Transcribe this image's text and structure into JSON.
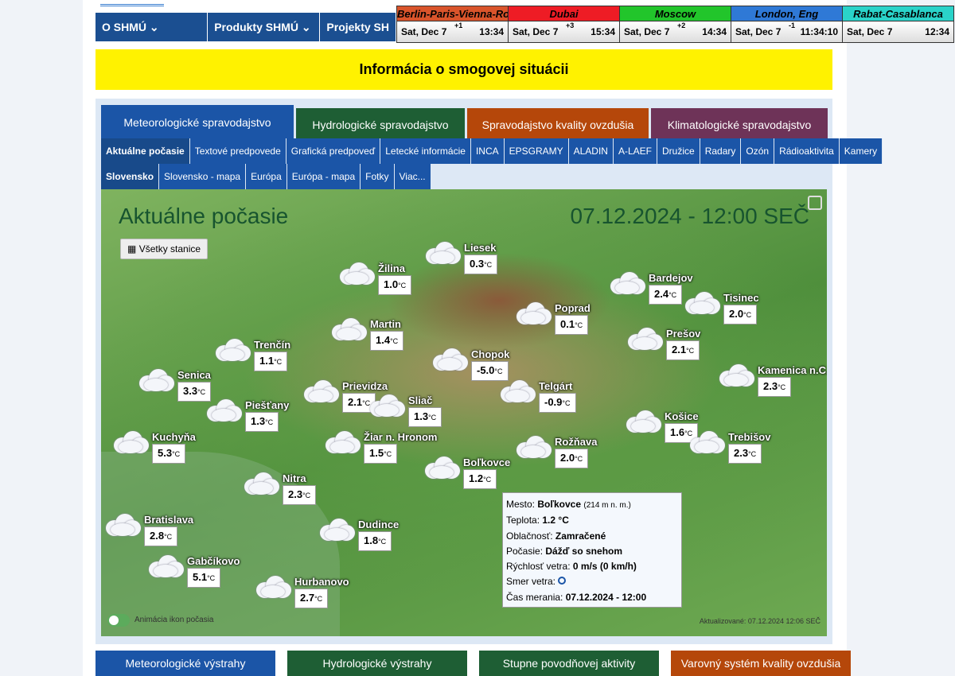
{
  "nav": {
    "items": [
      "O SHMÚ",
      "Produkty SHMÚ",
      "Projekty SH"
    ]
  },
  "clocks": [
    {
      "city": "Berlin-Paris-Vienna-Roma",
      "date": "Sat, Dec 7",
      "offset": "+1",
      "time": "13:34",
      "color": "#d9542b"
    },
    {
      "city": "Dubai",
      "date": "Sat, Dec 7",
      "offset": "+3",
      "time": "15:34",
      "color": "#ee1c25"
    },
    {
      "city": "Moscow",
      "date": "Sat, Dec 7",
      "offset": "+2",
      "time": "14:34",
      "color": "#22c52b"
    },
    {
      "city": "London, Eng",
      "date": "Sat, Dec 7",
      "offset": "-1",
      "time": "11:34:10",
      "color": "#2f79d6"
    },
    {
      "city": "Rabat-Casablanca",
      "date": "Sat, Dec 7",
      "offset": "",
      "time": "12:34",
      "color": "#2ad3c9"
    }
  ],
  "smog_banner": "Informácia o smogovej situácii",
  "main_tabs": [
    {
      "label": "Meteorologické spravodajstvo",
      "color": "#1b55a7"
    },
    {
      "label": "Hydrologické spravodajstvo",
      "color": "#1e5e34"
    },
    {
      "label": "Spravodajstvo kvality ovzdušia",
      "color": "#b5470a"
    },
    {
      "label": "Klimatologické spravodajstvo",
      "color": "#6e3358"
    }
  ],
  "sub_tabs": [
    "Aktuálne počasie",
    "Textové predpovede",
    "Grafická predpoveď",
    "Letecké informácie",
    "INCA",
    "EPSGRAMY",
    "ALADIN",
    "A-LAEF",
    "Družice",
    "Radary",
    "Ozón",
    "Rádioaktivita",
    "Kamery"
  ],
  "sub_tabs2": [
    "Slovensko",
    "Slovensko - mapa",
    "Európa",
    "Európa - mapa",
    "Fotky",
    "Viac..."
  ],
  "map": {
    "title": "Aktuálne počasie",
    "datetime": "07.12.2024 - 12:00 SEČ",
    "all_stations": "Všetky stanice",
    "temp_unit": "°C",
    "animation_label": "Animácia ikon počasia",
    "updated": "Aktualizované: 07.12.2024 12:06 SEČ",
    "stations": [
      {
        "name": "Liesek",
        "temp": "0.3"
      },
      {
        "name": "Žilina",
        "temp": "1.0"
      },
      {
        "name": "Bardejov",
        "temp": "2.4"
      },
      {
        "name": "Poprad",
        "temp": "0.1"
      },
      {
        "name": "Tisinec",
        "temp": "2.0"
      },
      {
        "name": "Martin",
        "temp": "1.4"
      },
      {
        "name": "Prešov",
        "temp": "2.1"
      },
      {
        "name": "Trenčín",
        "temp": "1.1"
      },
      {
        "name": "Chopok",
        "temp": "-5.0"
      },
      {
        "name": "Kamenica n.C.",
        "temp": "2.3"
      },
      {
        "name": "Senica",
        "temp": "3.3"
      },
      {
        "name": "Prievidza",
        "temp": "2.1"
      },
      {
        "name": "Telgárt",
        "temp": "-0.9"
      },
      {
        "name": "Piešťany",
        "temp": "1.3"
      },
      {
        "name": "Sliač",
        "temp": "1.3"
      },
      {
        "name": "Košice",
        "temp": "1.6"
      },
      {
        "name": "Trebišov",
        "temp": "2.3"
      },
      {
        "name": "Kuchyňa",
        "temp": "5.3"
      },
      {
        "name": "Žiar n. Hronom",
        "temp": "1.5"
      },
      {
        "name": "Rožňava",
        "temp": "2.0"
      },
      {
        "name": "Boľkovce",
        "temp": "1.2"
      },
      {
        "name": "Nitra",
        "temp": "2.3"
      },
      {
        "name": "Bratislava",
        "temp": "2.8"
      },
      {
        "name": "Dudince",
        "temp": "1.8"
      },
      {
        "name": "Gabčíkovo",
        "temp": "5.1"
      },
      {
        "name": "Hurbanovo",
        "temp": "2.7"
      }
    ]
  },
  "tooltip": {
    "city_label": "Mesto:",
    "city": "Boľkovce",
    "altitude": "(214 m n. m.)",
    "temp_label": "Teplota:",
    "temp": "1.2 °C",
    "cloud_label": "Oblačnosť:",
    "cloud": "Zamračené",
    "weather_label": "Počasie:",
    "weather": "Dážď so snehom",
    "wind_label": "Rýchlosť vetra:",
    "wind": "0 m/s (0 km/h)",
    "dir_label": "Smer vetra:",
    "time_label": "Čas merania:",
    "time": "07.12.2024 - 12:00"
  },
  "bottom_tabs": [
    {
      "label": "Meteorologické výstrahy",
      "color": "#1b55a7"
    },
    {
      "label": "Hydrologické výstrahy",
      "color": "#1e5e34"
    },
    {
      "label": "Stupne povodňovej aktivity",
      "color": "#1e5e34"
    },
    {
      "label": "Varovný systém kvality ovzdušia",
      "color": "#b5470a"
    }
  ]
}
